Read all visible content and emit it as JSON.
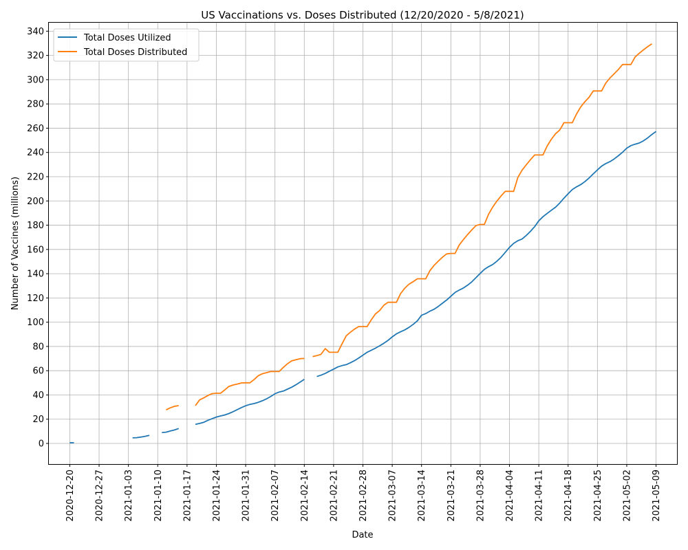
{
  "chart_data": {
    "type": "line",
    "title": "US Vaccinations vs. Doses Distributed (12/20/2020 - 5/8/2021)",
    "xlabel": "Date",
    "ylabel": "Number of Vaccines (millions)",
    "x_ticks": [
      "2020-12-20",
      "2020-12-27",
      "2021-01-03",
      "2021-01-10",
      "2021-01-17",
      "2021-01-24",
      "2021-01-31",
      "2021-02-07",
      "2021-02-14",
      "2021-02-21",
      "2021-02-28",
      "2021-03-07",
      "2021-03-14",
      "2021-03-21",
      "2021-03-28",
      "2021-04-04",
      "2021-04-11",
      "2021-04-18",
      "2021-04-25",
      "2021-05-02",
      "2021-05-09"
    ],
    "y_ticks": [
      0,
      20,
      40,
      60,
      80,
      100,
      120,
      140,
      160,
      180,
      200,
      220,
      240,
      260,
      280,
      300,
      320,
      340
    ],
    "xlim": [
      "2020-12-15",
      "2021-05-14"
    ],
    "ylim": [
      -17,
      347
    ],
    "grid": true,
    "legend_position": "top-left",
    "series": [
      {
        "name": "Total Doses Utilized",
        "color": "#1f77b4",
        "segments": [
          [
            [
              "2020-12-20",
              0.6
            ],
            [
              "2020-12-21",
              0.6
            ]
          ],
          [
            [
              "2021-01-04",
              4.6
            ],
            [
              "2021-01-05",
              4.8
            ],
            [
              "2021-01-06",
              5.3
            ],
            [
              "2021-01-07",
              5.9
            ],
            [
              "2021-01-08",
              6.7
            ]
          ],
          [
            [
              "2021-01-11",
              9.0
            ],
            [
              "2021-01-12",
              9.3
            ],
            [
              "2021-01-13",
              10.3
            ],
            [
              "2021-01-14",
              11.1
            ],
            [
              "2021-01-15",
              12.3
            ]
          ],
          [
            [
              "2021-01-19",
              15.7
            ],
            [
              "2021-01-20",
              16.5
            ],
            [
              "2021-01-21",
              17.5
            ],
            [
              "2021-01-22",
              19.1
            ],
            [
              "2021-01-23",
              20.5
            ],
            [
              "2021-01-24",
              21.8
            ],
            [
              "2021-01-25",
              22.7
            ],
            [
              "2021-01-26",
              23.5
            ],
            [
              "2021-01-27",
              24.7
            ],
            [
              "2021-01-28",
              26.2
            ],
            [
              "2021-01-29",
              27.9
            ],
            [
              "2021-01-30",
              29.6
            ],
            [
              "2021-01-31",
              31.1
            ],
            [
              "2021-02-01",
              32.2
            ],
            [
              "2021-02-02",
              32.9
            ],
            [
              "2021-02-03",
              33.9
            ],
            [
              "2021-02-04",
              35.2
            ],
            [
              "2021-02-05",
              36.8
            ],
            [
              "2021-02-06",
              38.8
            ],
            [
              "2021-02-07",
              41.0
            ],
            [
              "2021-02-08",
              42.4
            ],
            [
              "2021-02-09",
              43.2
            ],
            [
              "2021-02-10",
              44.8
            ],
            [
              "2021-02-11",
              46.4
            ],
            [
              "2021-02-12",
              48.4
            ],
            [
              "2021-02-13",
              50.6
            ],
            [
              "2021-02-14",
              52.9
            ]
          ],
          [
            [
              "2021-02-17",
              55.2
            ],
            [
              "2021-02-18",
              56.3
            ],
            [
              "2021-02-19",
              57.7
            ],
            [
              "2021-02-20",
              59.6
            ],
            [
              "2021-02-21",
              61.3
            ],
            [
              "2021-02-22",
              63.1
            ],
            [
              "2021-02-23",
              64.2
            ],
            [
              "2021-02-24",
              65.0
            ],
            [
              "2021-02-25",
              66.5
            ],
            [
              "2021-02-26",
              68.3
            ],
            [
              "2021-02-27",
              70.5
            ],
            [
              "2021-02-28",
              72.8
            ],
            [
              "2021-03-01",
              75.2
            ],
            [
              "2021-03-02",
              76.9
            ],
            [
              "2021-03-03",
              78.6
            ],
            [
              "2021-03-04",
              80.5
            ],
            [
              "2021-03-05",
              82.6
            ],
            [
              "2021-03-06",
              85.0
            ],
            [
              "2021-03-07",
              87.9
            ],
            [
              "2021-03-08",
              90.4
            ],
            [
              "2021-03-09",
              92.1
            ],
            [
              "2021-03-10",
              93.7
            ],
            [
              "2021-03-11",
              95.7
            ],
            [
              "2021-03-12",
              98.2
            ],
            [
              "2021-03-13",
              101.1
            ],
            [
              "2021-03-14",
              105.7
            ],
            [
              "2021-03-15",
              107.1
            ],
            [
              "2021-03-16",
              109.1
            ],
            [
              "2021-03-17",
              110.7
            ],
            [
              "2021-03-18",
              113.0
            ],
            [
              "2021-03-19",
              115.7
            ],
            [
              "2021-03-20",
              118.3
            ],
            [
              "2021-03-21",
              121.4
            ],
            [
              "2021-03-22",
              124.5
            ],
            [
              "2021-03-23",
              126.5
            ],
            [
              "2021-03-24",
              128.2
            ],
            [
              "2021-03-25",
              130.5
            ],
            [
              "2021-03-26",
              133.3
            ],
            [
              "2021-03-27",
              136.7
            ],
            [
              "2021-03-28",
              140.2
            ],
            [
              "2021-03-29",
              143.5
            ],
            [
              "2021-03-30",
              145.8
            ],
            [
              "2021-03-31",
              147.6
            ],
            [
              "2021-04-01",
              150.3
            ],
            [
              "2021-04-02",
              153.6
            ],
            [
              "2021-04-03",
              157.6
            ],
            [
              "2021-04-04",
              161.7
            ],
            [
              "2021-04-05",
              165.0
            ],
            [
              "2021-04-06",
              167.2
            ],
            [
              "2021-04-07",
              168.6
            ],
            [
              "2021-04-08",
              171.5
            ],
            [
              "2021-04-09",
              174.9
            ],
            [
              "2021-04-10",
              178.8
            ],
            [
              "2021-04-11",
              183.6
            ],
            [
              "2021-04-12",
              187.0
            ],
            [
              "2021-04-13",
              189.7
            ],
            [
              "2021-04-14",
              192.3
            ],
            [
              "2021-04-15",
              194.8
            ],
            [
              "2021-04-16",
              198.3
            ],
            [
              "2021-04-17",
              202.3
            ],
            [
              "2021-04-18",
              205.9
            ],
            [
              "2021-04-19",
              209.4
            ],
            [
              "2021-04-20",
              211.6
            ],
            [
              "2021-04-21",
              213.4
            ],
            [
              "2021-04-22",
              215.9
            ],
            [
              "2021-04-23",
              218.9
            ],
            [
              "2021-04-24",
              222.3
            ],
            [
              "2021-04-25",
              225.6
            ],
            [
              "2021-04-26",
              228.7
            ],
            [
              "2021-04-27",
              230.8
            ],
            [
              "2021-04-28",
              232.4
            ],
            [
              "2021-04-29",
              234.6
            ],
            [
              "2021-04-30",
              237.3
            ],
            [
              "2021-05-01",
              240.2
            ],
            [
              "2021-05-02",
              243.5
            ],
            [
              "2021-05-03",
              245.6
            ],
            [
              "2021-05-04",
              246.8
            ],
            [
              "2021-05-05",
              247.8
            ],
            [
              "2021-05-06",
              249.6
            ],
            [
              "2021-05-07",
              252.0
            ],
            [
              "2021-05-08",
              254.8
            ],
            [
              "2021-05-09",
              257.3
            ]
          ]
        ]
      },
      {
        "name": "Total Doses Distributed",
        "color": "#ff7f0e",
        "segments": [
          [
            [
              "2021-01-12",
              27.7
            ],
            [
              "2021-01-13",
              29.4
            ],
            [
              "2021-01-14",
              30.6
            ],
            [
              "2021-01-15",
              31.2
            ]
          ],
          [
            [
              "2021-01-19",
              31.2
            ],
            [
              "2021-01-20",
              35.9
            ],
            [
              "2021-01-21",
              37.6
            ],
            [
              "2021-01-22",
              39.6
            ],
            [
              "2021-01-23",
              41.1
            ],
            [
              "2021-01-24",
              41.4
            ],
            [
              "2021-01-25",
              41.4
            ],
            [
              "2021-01-26",
              44.1
            ],
            [
              "2021-01-27",
              47.0
            ],
            [
              "2021-01-28",
              48.2
            ],
            [
              "2021-01-29",
              49.0
            ],
            [
              "2021-01-30",
              49.9
            ],
            [
              "2021-01-31",
              50.0
            ],
            [
              "2021-02-01",
              50.0
            ],
            [
              "2021-02-02",
              52.6
            ],
            [
              "2021-02-03",
              55.8
            ],
            [
              "2021-02-04",
              57.5
            ],
            [
              "2021-02-05",
              58.4
            ],
            [
              "2021-02-06",
              59.3
            ],
            [
              "2021-02-07",
              59.3
            ],
            [
              "2021-02-08",
              59.3
            ],
            [
              "2021-02-09",
              62.8
            ],
            [
              "2021-02-10",
              65.8
            ],
            [
              "2021-02-11",
              68.1
            ],
            [
              "2021-02-12",
              69.0
            ],
            [
              "2021-02-13",
              69.9
            ],
            [
              "2021-02-14",
              70.1
            ]
          ],
          [
            [
              "2021-02-16",
              71.7
            ],
            [
              "2021-02-17",
              72.4
            ],
            [
              "2021-02-18",
              73.5
            ],
            [
              "2021-02-19",
              78.2
            ],
            [
              "2021-02-20",
              75.2
            ],
            [
              "2021-02-21",
              75.2
            ],
            [
              "2021-02-22",
              75.2
            ],
            [
              "2021-02-23",
              82.1
            ],
            [
              "2021-02-24",
              88.7
            ],
            [
              "2021-02-25",
              91.7
            ],
            [
              "2021-02-26",
              94.3
            ],
            [
              "2021-02-27",
              96.4
            ],
            [
              "2021-02-28",
              96.4
            ],
            [
              "2021-03-01",
              96.4
            ],
            [
              "2021-03-02",
              102.0
            ],
            [
              "2021-03-03",
              106.9
            ],
            [
              "2021-03-04",
              109.6
            ],
            [
              "2021-03-05",
              114.0
            ],
            [
              "2021-03-06",
              116.4
            ],
            [
              "2021-03-07",
              116.4
            ],
            [
              "2021-03-08",
              116.4
            ],
            [
              "2021-03-09",
              123.6
            ],
            [
              "2021-03-10",
              128.1
            ],
            [
              "2021-03-11",
              131.3
            ],
            [
              "2021-03-12",
              133.4
            ],
            [
              "2021-03-13",
              135.8
            ],
            [
              "2021-03-14",
              135.8
            ],
            [
              "2021-03-15",
              135.8
            ],
            [
              "2021-03-16",
              142.5
            ],
            [
              "2021-03-17",
              146.9
            ],
            [
              "2021-03-18",
              150.4
            ],
            [
              "2021-03-19",
              153.6
            ],
            [
              "2021-03-20",
              156.3
            ],
            [
              "2021-03-21",
              156.7
            ],
            [
              "2021-03-22",
              156.7
            ],
            [
              "2021-03-23",
              163.7
            ],
            [
              "2021-03-24",
              168.2
            ],
            [
              "2021-03-25",
              172.3
            ],
            [
              "2021-03-26",
              176.1
            ],
            [
              "2021-03-27",
              179.7
            ],
            [
              "2021-03-28",
              180.6
            ],
            [
              "2021-03-29",
              180.6
            ],
            [
              "2021-03-30",
              189.0
            ],
            [
              "2021-03-31",
              195.0
            ],
            [
              "2021-04-01",
              199.9
            ],
            [
              "2021-04-02",
              204.2
            ],
            [
              "2021-04-03",
              207.9
            ],
            [
              "2021-04-04",
              207.9
            ],
            [
              "2021-04-05",
              207.9
            ],
            [
              "2021-04-06",
              219.4
            ],
            [
              "2021-04-07",
              225.3
            ],
            [
              "2021-04-08",
              229.8
            ],
            [
              "2021-04-09",
              234.0
            ],
            [
              "2021-04-10",
              237.9
            ],
            [
              "2021-04-11",
              237.9
            ],
            [
              "2021-04-12",
              237.9
            ],
            [
              "2021-04-13",
              245.3
            ],
            [
              "2021-04-14",
              250.9
            ],
            [
              "2021-04-15",
              255.4
            ],
            [
              "2021-04-16",
              258.5
            ],
            [
              "2021-04-17",
              264.5
            ],
            [
              "2021-04-18",
              264.5
            ],
            [
              "2021-04-19",
              264.5
            ],
            [
              "2021-04-20",
              271.6
            ],
            [
              "2021-04-21",
              277.5
            ],
            [
              "2021-04-22",
              281.8
            ],
            [
              "2021-04-23",
              285.5
            ],
            [
              "2021-04-24",
              290.7
            ],
            [
              "2021-04-25",
              290.7
            ],
            [
              "2021-04-26",
              290.7
            ],
            [
              "2021-04-27",
              297.2
            ],
            [
              "2021-04-28",
              301.4
            ],
            [
              "2021-04-29",
              304.9
            ],
            [
              "2021-04-30",
              308.4
            ],
            [
              "2021-05-01",
              312.5
            ],
            [
              "2021-05-02",
              312.5
            ],
            [
              "2021-05-03",
              312.5
            ],
            [
              "2021-05-04",
              318.7
            ],
            [
              "2021-05-05",
              321.8
            ],
            [
              "2021-05-06",
              324.6
            ],
            [
              "2021-05-07",
              327.2
            ],
            [
              "2021-05-08",
              329.6
            ]
          ]
        ]
      }
    ]
  }
}
